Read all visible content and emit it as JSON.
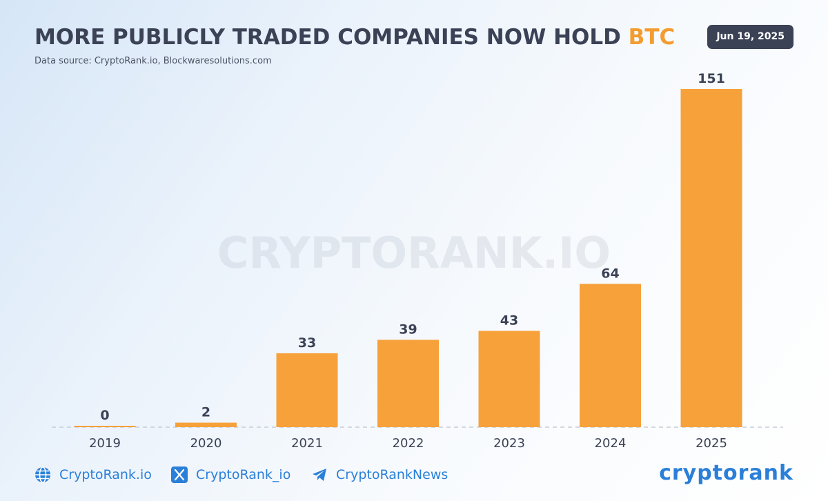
{
  "header": {
    "title_main": "MORE PUBLICLY TRADED COMPANIES NOW HOLD ",
    "title_accent": "BTC",
    "source": "Data source: CryptoRank.io, Blockwaresolutions.com",
    "date": "Jun 19, 2025"
  },
  "watermark": "CRYPTORANK.IO",
  "colors": {
    "bar": "#f7a13a",
    "accent": "#f39c2f",
    "text": "#3b4256",
    "link": "#2a7fd8",
    "badge": "#3b4256"
  },
  "chart_data": {
    "type": "bar",
    "title": "MORE PUBLICLY TRADED COMPANIES NOW HOLD BTC",
    "categories": [
      "2019",
      "2020",
      "2021",
      "2022",
      "2023",
      "2024",
      "2025"
    ],
    "values": [
      0,
      2,
      33,
      39,
      43,
      64,
      151
    ],
    "xlabel": "",
    "ylabel": "",
    "ylim": [
      0,
      151
    ],
    "grid": false,
    "legend": "none",
    "data_labels": true
  },
  "footer": {
    "website": "CryptoRank.io",
    "twitter": "CryptoRank_io",
    "telegram": "CryptoRankNews",
    "brand": "cryptorank",
    "icons": [
      "globe-icon",
      "x-icon",
      "telegram-icon"
    ]
  }
}
